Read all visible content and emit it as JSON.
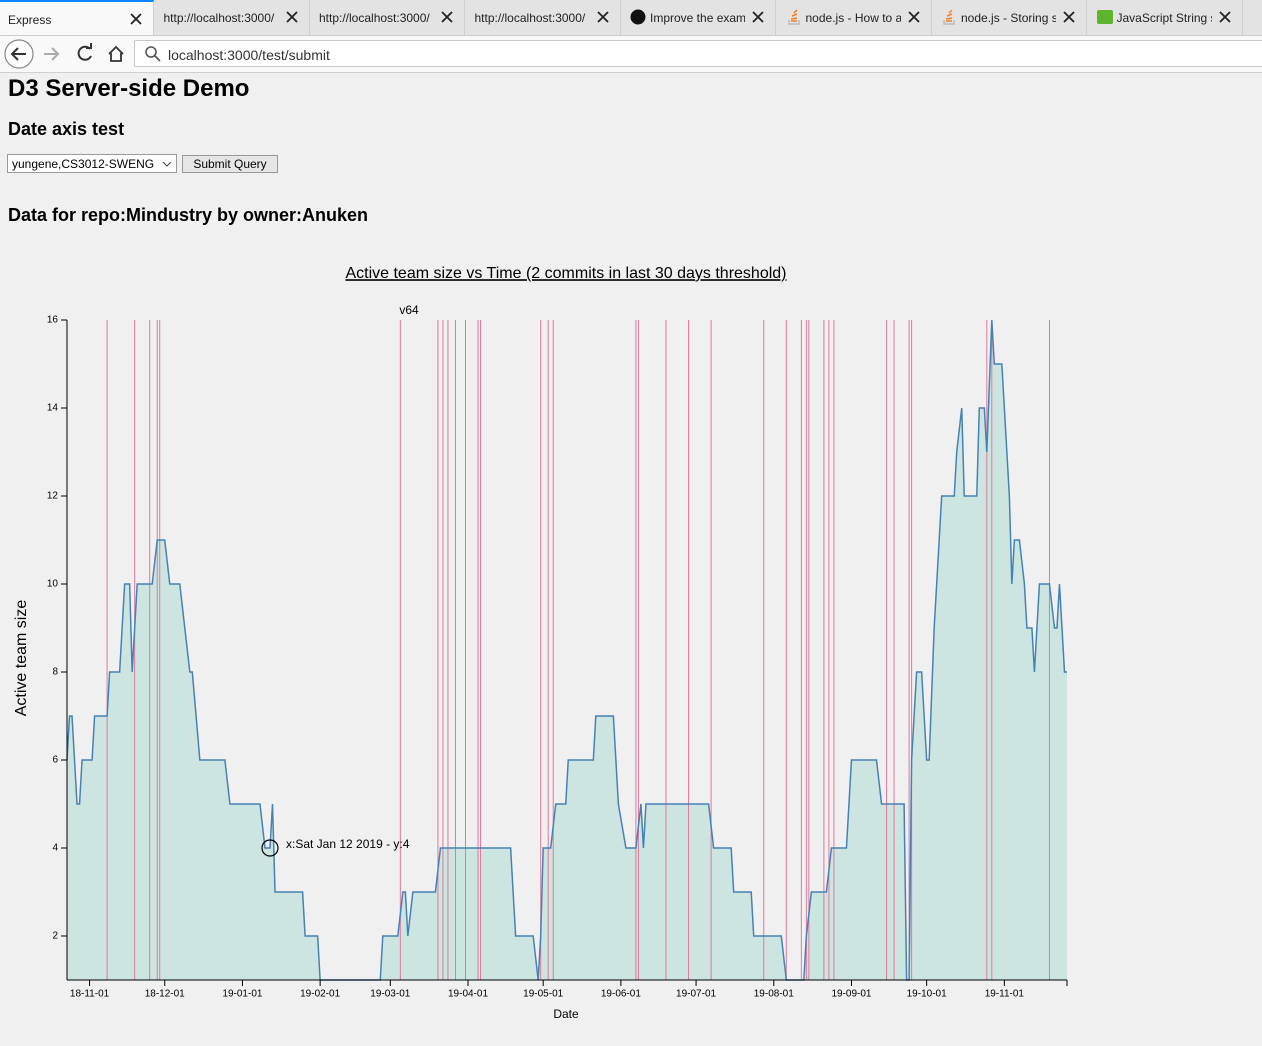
{
  "browser": {
    "tabs": [
      "Express",
      "http://localhost:3000/",
      "http://localhost:3000/",
      "http://localhost:3000/",
      "Improve the exam",
      "node.js - How to a",
      "node.js - Storing s",
      "JavaScript String s"
    ],
    "address": "localhost:3000/test/submit"
  },
  "page": {
    "title": "D3 Server-side Demo",
    "subtitle": "Date axis test",
    "select": "yungene,CS3012-SWENG",
    "button": "Submit Query",
    "heading": "Data for repo:Mindustry by owner:Anuken"
  },
  "chart_data": {
    "type": "area",
    "title": "Active team size vs Time (2 commits in last 30 days threshold)",
    "x_label": "Date",
    "y_label": "Active team size",
    "color": "#4682b4",
    "fill_color": "#cde5e0",
    "x": [
      "18-10-23",
      "18-10-24",
      "18-10-25",
      "18-10-27",
      "18-10-28",
      "18-10-29",
      "18-11-02",
      "18-11-03",
      "18-11-08",
      "18-11-09",
      "18-11-13",
      "18-11-15",
      "18-11-17",
      "18-11-18",
      "18-11-19",
      "18-11-20",
      "18-11-26",
      "18-11-28",
      "18-12-01",
      "18-12-03",
      "18-12-07",
      "18-12-09",
      "18-12-11",
      "18-12-12",
      "18-12-15",
      "18-12-25",
      "18-12-27",
      "19-01-08",
      "19-01-10",
      "19-01-12",
      "19-01-13",
      "19-01-14",
      "19-01-25",
      "19-01-26",
      "19-01-31",
      "19-02-01",
      "19-02-25",
      "19-02-26",
      "19-03-04",
      "19-03-06",
      "19-03-07",
      "19-03-08",
      "19-03-10",
      "19-03-19",
      "19-03-21",
      "19-04-18",
      "19-04-20",
      "19-04-27",
      "19-04-29",
      "19-04-30",
      "19-05-01",
      "19-05-04",
      "19-05-06",
      "19-05-10",
      "19-05-11",
      "19-05-21",
      "19-05-22",
      "19-05-29",
      "19-05-31",
      "19-06-03",
      "19-06-07",
      "19-06-09",
      "19-06-10",
      "19-06-11",
      "19-07-06",
      "19-07-08",
      "19-07-15",
      "19-07-16",
      "19-07-23",
      "19-07-24",
      "19-08-04",
      "19-08-06",
      "19-08-13",
      "19-08-14",
      "19-08-16",
      "19-08-22",
      "19-08-24",
      "19-08-30",
      "19-09-01",
      "19-09-11",
      "19-09-13",
      "19-09-22",
      "19-09-23",
      "19-09-24",
      "19-09-25",
      "19-09-27",
      "19-09-29",
      "19-10-01",
      "19-10-02",
      "19-10-04",
      "19-10-06",
      "19-10-07",
      "19-10-12",
      "19-10-13",
      "19-10-15",
      "19-10-16",
      "19-10-21",
      "19-10-22",
      "19-10-24",
      "19-10-25",
      "19-10-27",
      "19-10-28",
      "19-10-31",
      "19-11-03",
      "19-11-04",
      "19-11-05",
      "19-11-07",
      "19-11-09",
      "19-11-10",
      "19-11-12",
      "19-11-13",
      "19-11-15",
      "19-11-19",
      "19-11-21",
      "19-11-22",
      "19-11-23",
      "19-11-25",
      "19-11-26"
    ],
    "values": [
      6,
      7,
      7,
      5,
      5,
      6,
      6,
      7,
      7,
      8,
      8,
      10,
      10,
      8,
      9,
      10,
      10,
      11,
      11,
      10,
      10,
      9,
      8,
      8,
      6,
      6,
      5,
      5,
      4,
      4,
      5,
      3,
      3,
      2,
      2,
      1,
      1,
      2,
      2,
      3,
      3,
      2,
      3,
      3,
      4,
      4,
      2,
      2,
      1,
      2,
      4,
      4,
      5,
      5,
      6,
      6,
      7,
      7,
      5,
      4,
      4,
      5,
      4,
      5,
      5,
      4,
      4,
      3,
      3,
      2,
      2,
      1,
      1,
      2,
      3,
      3,
      4,
      4,
      6,
      6,
      5,
      5,
      1,
      1,
      6,
      8,
      8,
      6,
      6,
      9,
      11,
      12,
      12,
      13,
      14,
      12,
      12,
      14,
      14,
      13,
      16,
      15,
      15,
      12,
      10,
      11,
      11,
      10,
      9,
      9,
      8,
      10,
      10,
      9,
      9,
      10,
      8,
      8
    ],
    "release_color": "#e0799a",
    "releases": [
      "18-11-08",
      "18-11-19",
      "18-11-25",
      "18-11-28",
      "18-11-29",
      "19-03-05",
      "19-03-20",
      "19-03-22",
      "19-03-24",
      "19-03-27",
      "19-03-31",
      "19-04-05",
      "19-04-06",
      "19-04-30",
      "19-05-03",
      "19-05-05",
      "19-06-07",
      "19-06-08",
      "19-06-19",
      "19-06-28",
      "19-07-07",
      "19-07-28",
      "19-08-06",
      "19-08-12",
      "19-08-14",
      "19-08-15",
      "19-08-21",
      "19-08-23",
      "19-08-25",
      "19-09-15",
      "19-09-18",
      "19-09-24",
      "19-09-25",
      "19-10-25",
      "19-10-27",
      "19-11-19"
    ],
    "annotation": {
      "text": "v64",
      "x": "19-03-05"
    },
    "tooltip": {
      "text": "x:Sat Jan 12 2019 - y:4",
      "x": "19-01-12",
      "y": 4
    },
    "xlim": [
      "18-10-23",
      "19-11-26"
    ],
    "xticks": [
      "18-11-01",
      "18-12-01",
      "19-01-01",
      "19-02-01",
      "19-03-01",
      "19-04-01",
      "19-05-01",
      "19-06-01",
      "19-07-01",
      "19-08-01",
      "19-09-01",
      "19-10-01",
      "19-11-01"
    ],
    "ylim": [
      1,
      16
    ],
    "yticks": [
      2,
      4,
      6,
      8,
      10,
      12,
      14,
      16
    ]
  }
}
